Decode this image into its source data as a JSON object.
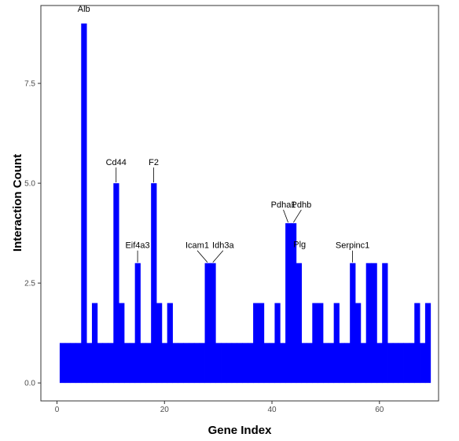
{
  "chart_data": {
    "type": "bar",
    "title": "",
    "xlabel": "Gene Index",
    "ylabel": "Interaction Count",
    "xlim": [
      -3,
      71
    ],
    "ylim": [
      -0.45,
      9.45
    ],
    "x_ticks": [
      0,
      20,
      40,
      60
    ],
    "y_ticks": [
      0.0,
      2.5,
      5.0,
      7.5
    ],
    "y_tick_labels": [
      "0.0",
      "2.5",
      "5.0",
      "7.5"
    ],
    "grid": false,
    "legend": "none",
    "bar_color": "#0000ff",
    "x": [
      1,
      2,
      3,
      4,
      5,
      6,
      7,
      8,
      9,
      10,
      11,
      12,
      13,
      14,
      15,
      16,
      17,
      18,
      19,
      20,
      21,
      22,
      23,
      24,
      25,
      26,
      27,
      28,
      29,
      30,
      31,
      32,
      33,
      34,
      35,
      36,
      37,
      38,
      39,
      40,
      41,
      42,
      43,
      44,
      45,
      46,
      47,
      48,
      49,
      50,
      51,
      52,
      53,
      54,
      55,
      56,
      57,
      58,
      59,
      60,
      61,
      62,
      63,
      64,
      65,
      66,
      67,
      68,
      69
    ],
    "values": [
      1,
      1,
      1,
      1,
      9,
      1,
      2,
      1,
      1,
      1,
      5,
      2,
      1,
      1,
      3,
      1,
      1,
      5,
      2,
      1,
      2,
      1,
      1,
      1,
      1,
      1,
      1,
      3,
      3,
      1,
      1,
      1,
      1,
      1,
      1,
      1,
      2,
      2,
      1,
      1,
      2,
      1,
      4,
      4,
      3,
      1,
      1,
      2,
      2,
      1,
      1,
      2,
      1,
      1,
      3,
      2,
      1,
      3,
      3,
      1,
      3,
      1,
      1,
      1,
      1,
      1,
      2,
      1,
      2
    ],
    "annotations": [
      {
        "label": "Alb",
        "x": 5,
        "y": 9
      },
      {
        "label": "Cd44",
        "x": 11,
        "y": 5
      },
      {
        "label": "F2",
        "x": 18,
        "y": 5
      },
      {
        "label": "Eif4a3",
        "x": 15,
        "y": 3
      },
      {
        "label": "Icam1",
        "x": 28,
        "y": 3
      },
      {
        "label": "Idh3a",
        "x": 29,
        "y": 3
      },
      {
        "label": "Pdha1",
        "x": 43,
        "y": 4
      },
      {
        "label": "Pdhb",
        "x": 44,
        "y": 4
      },
      {
        "label": "Plg",
        "x": 45,
        "y": 3
      },
      {
        "label": "Serpinc1",
        "x": 55,
        "y": 3
      }
    ]
  }
}
